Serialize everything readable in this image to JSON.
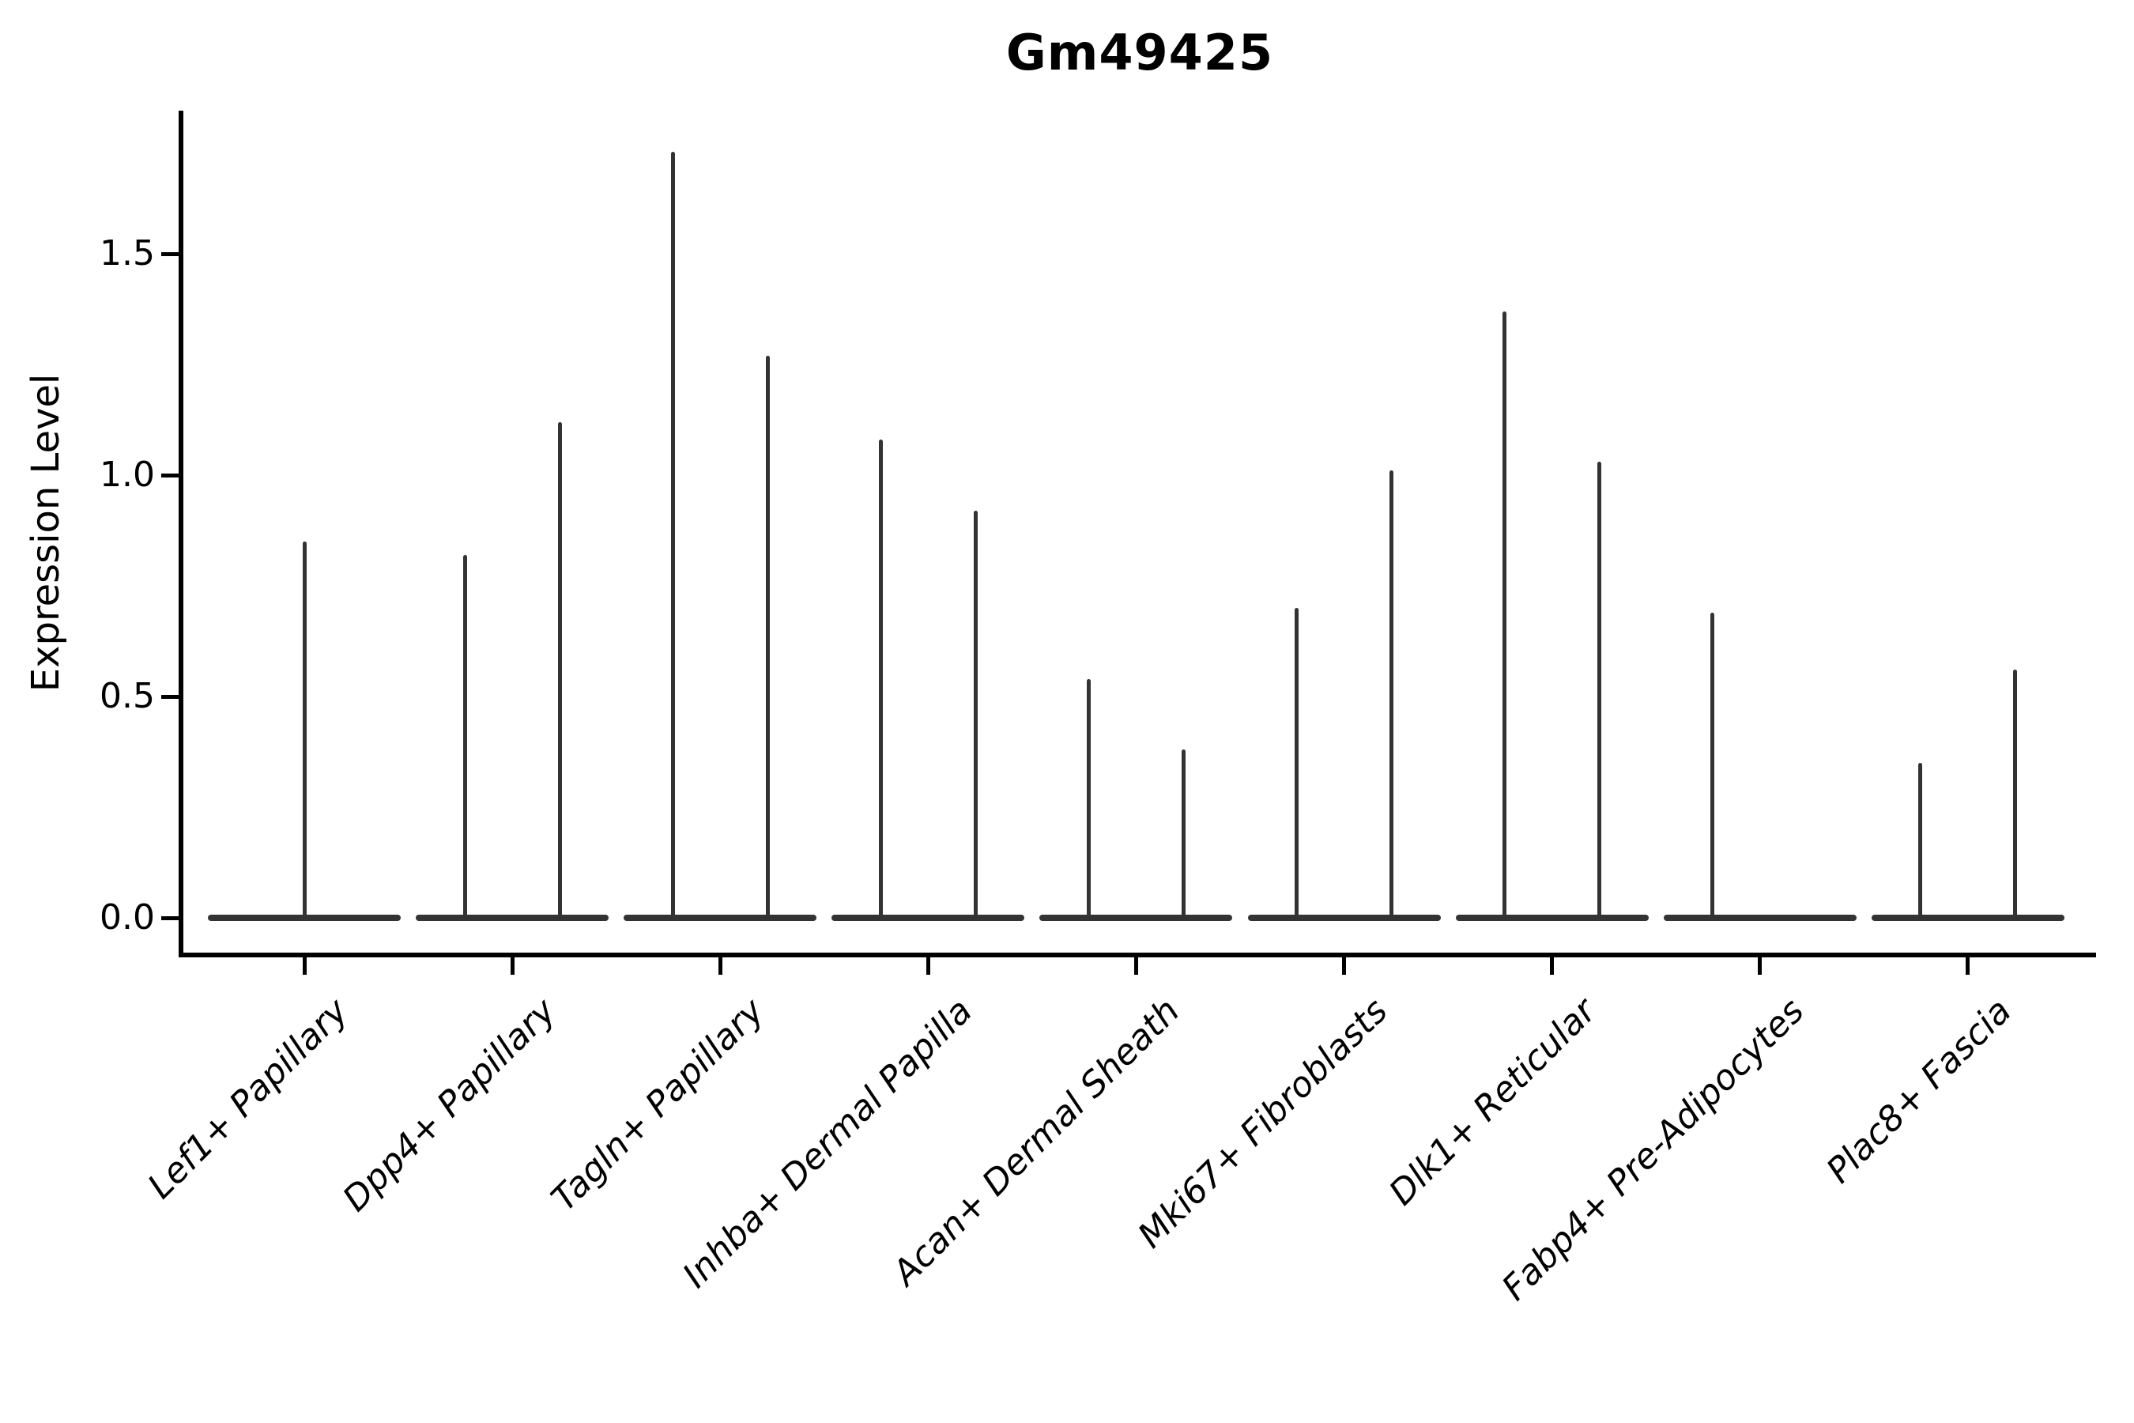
{
  "colors": {
    "violin_line": "#333333",
    "axis": "#000000",
    "background": "#ffffff"
  },
  "chart_data": {
    "type": "violin",
    "title": "Gm49425",
    "xlabel": "",
    "ylabel": "Expression Level",
    "legend": "none",
    "grid": false,
    "y_axis": {
      "tick_values": [
        0.0,
        0.5,
        1.0,
        1.5
      ],
      "tick_labels": [
        "0.0",
        "0.5",
        "1.0",
        "1.5"
      ],
      "ylim": [
        -0.084,
        1.82
      ]
    },
    "categories": [
      "Lef1+ Papillary",
      "Dpp4+ Papillary",
      "Tagln+ Papillary",
      "Inhba+ Dermal Papilla",
      "Acan+ Dermal Sheath",
      "Mki67+ Fibroblasts",
      "Dlk1+ Reticular",
      "Fabp4+ Pre-Adipocytes",
      "Plac8+ Fascia"
    ],
    "violins": [
      {
        "category": "Lef1+ Papillary",
        "spikes": [
          {
            "pos": "center",
            "max": 0.85
          }
        ]
      },
      {
        "category": "Dpp4+ Papillary",
        "spikes": [
          {
            "pos": "left",
            "max": 0.82
          },
          {
            "pos": "right",
            "max": 1.12
          }
        ]
      },
      {
        "category": "Tagln+ Papillary",
        "spikes": [
          {
            "pos": "left",
            "max": 1.73
          },
          {
            "pos": "right",
            "max": 1.27
          }
        ]
      },
      {
        "category": "Inhba+ Dermal Papilla",
        "spikes": [
          {
            "pos": "left",
            "max": 1.08
          },
          {
            "pos": "right",
            "max": 0.92
          }
        ]
      },
      {
        "category": "Acan+ Dermal Sheath",
        "spikes": [
          {
            "pos": "left",
            "max": 0.54
          },
          {
            "pos": "right",
            "max": 0.38
          }
        ]
      },
      {
        "category": "Mki67+ Fibroblasts",
        "spikes": [
          {
            "pos": "left",
            "max": 0.7
          },
          {
            "pos": "right",
            "max": 1.01
          }
        ]
      },
      {
        "category": "Dlk1+ Reticular",
        "spikes": [
          {
            "pos": "left",
            "max": 1.37
          },
          {
            "pos": "right",
            "max": 1.03
          }
        ]
      },
      {
        "category": "Fabp4+ Pre-Adipocytes",
        "spikes": [
          {
            "pos": "left",
            "max": 0.69
          }
        ]
      },
      {
        "category": "Plac8+ Fascia",
        "spikes": [
          {
            "pos": "left",
            "max": 0.35
          },
          {
            "pos": "right",
            "max": 0.56
          }
        ]
      }
    ],
    "description": "Violin plot of expression level of gene Gm49425 across 9 fibroblast cell-type clusters; each violin collapses to a flat line at 0 with thin spikes up to the maximum expression values."
  }
}
